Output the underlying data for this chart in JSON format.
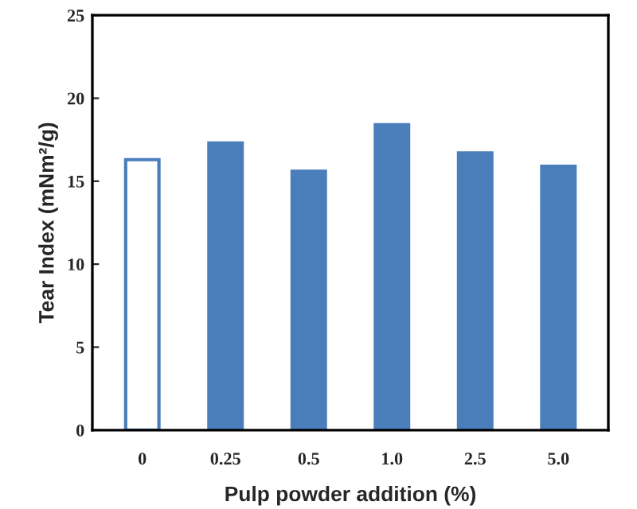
{
  "chart_data": {
    "type": "bar",
    "xlabel": "Pulp powder addition (%)",
    "ylabel": "Tear Index (mNm²/g)",
    "categories": [
      "0",
      "0.25",
      "0.5",
      "1.0",
      "2.5",
      "5.0"
    ],
    "values": [
      16.3,
      17.3,
      15.6,
      18.4,
      16.7,
      15.9
    ],
    "color": "#4a7ebb",
    "colors": [
      "#ffffff",
      "#4a7ebb",
      "#4a7ebb",
      "#4a7ebb",
      "#4a7ebb",
      "#4a7ebb"
    ],
    "ylim": [
      0,
      25
    ],
    "yticks": [
      0,
      5,
      10,
      15,
      20,
      25
    ],
    "grid": false
  }
}
